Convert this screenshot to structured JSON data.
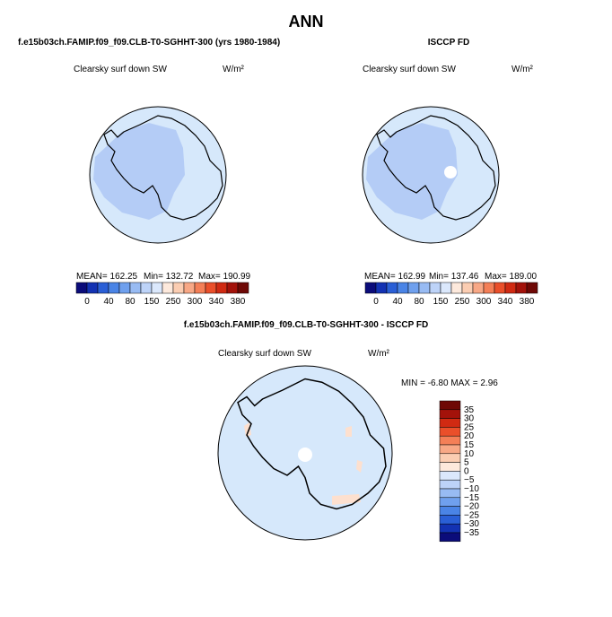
{
  "title": "ANN",
  "panels": [
    {
      "header": "f.e15b03ch.FAMIP.f09_f09.CLB-T0-SGHHT-300 (yrs 1980-1984)",
      "subtitle": "Clearsky surf down SW",
      "units": "W/m²",
      "stats": [
        "MEAN= 162.25",
        "Min= 132.72",
        "Max= 190.99"
      ],
      "colorbar_labels": [
        "0",
        "40",
        "80",
        "150",
        "250",
        "300",
        "340",
        "380"
      ]
    },
    {
      "header": "ISCCP FD",
      "subtitle": "Clearsky surf down SW",
      "units": "W/m²",
      "stats": [
        "MEAN= 162.99",
        "Min= 137.46",
        "Max= 189.00"
      ],
      "colorbar_labels": [
        "0",
        "40",
        "80",
        "150",
        "250",
        "300",
        "340",
        "380"
      ]
    },
    {
      "header": "f.e15b03ch.FAMIP.f09_f09.CLB-T0-SGHHT-300 - ISCCP FD",
      "subtitle": "Clearsky surf down SW",
      "units": "W/m²",
      "stats": [
        "MIN =  -6.80 MAX =   2.96"
      ],
      "colorbar_labels": [
        "35",
        "30",
        "25",
        "20",
        "15",
        "10",
        "5",
        "0",
        "−5",
        "−10",
        "−15",
        "−20",
        "−25",
        "−30",
        "−35"
      ]
    }
  ]
}
